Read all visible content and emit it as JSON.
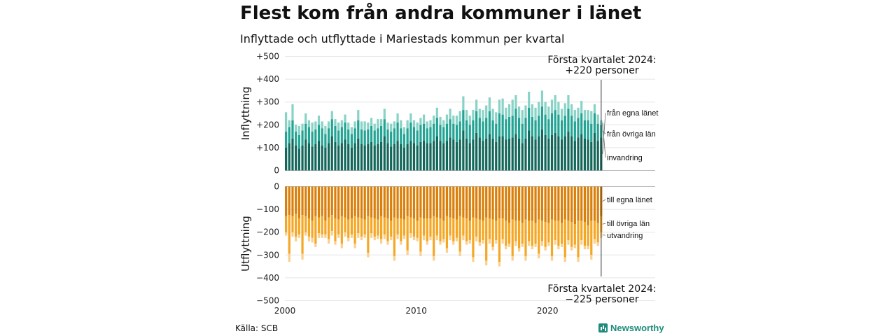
{
  "title": "Flest kom från andra kommuner i länet",
  "subtitle": "Inflyttade och utflyttade i Mariestads kommun per kvartal",
  "source": "Källa: SCB",
  "brand": "Newsworthy",
  "colors": {
    "in_egna": "#13665a",
    "in_ovriga": "#22a393",
    "in_invandring": "#88d3c6",
    "out_egna": "#d97f0a",
    "out_ovriga": "#f5a623",
    "out_utvandring": "#fad08c",
    "brand": "#1d8c7c"
  },
  "chart_data": [
    {
      "type": "bar",
      "stacked": true,
      "ylabel": "Inflyttning",
      "ylim": [
        0,
        500
      ],
      "yticks": [
        "0",
        "+100",
        "+200",
        "+300",
        "+400",
        "+500"
      ],
      "xticks": [
        "2000",
        "2010",
        "2020"
      ],
      "x_start": "2000 Q1",
      "x_end": "2024 Q1",
      "annotation": "Första kvartalet 2024:\n+220 personer",
      "series": [
        {
          "name": "från egna länet",
          "values": [
            100,
            120,
            140,
            110,
            95,
            110,
            135,
            120,
            105,
            115,
            130,
            110,
            100,
            120,
            150,
            125,
            110,
            120,
            135,
            115,
            100,
            120,
            140,
            115,
            110,
            115,
            125,
            110,
            115,
            125,
            150,
            120,
            105,
            115,
            130,
            115,
            100,
            115,
            130,
            120,
            110,
            125,
            130,
            120,
            120,
            130,
            150,
            130,
            120,
            130,
            145,
            135,
            125,
            135,
            175,
            140,
            120,
            135,
            165,
            145,
            130,
            140,
            160,
            140,
            125,
            150,
            150,
            135,
            140,
            145,
            160,
            140,
            120,
            140,
            175,
            150,
            135,
            150,
            180,
            155,
            140,
            155,
            165,
            150,
            135,
            150,
            170,
            150,
            130,
            145,
            160,
            140,
            135,
            125,
            165,
            130,
            145
          ]
        },
        {
          "name": "från övriga län",
          "values": [
            70,
            70,
            80,
            60,
            60,
            65,
            70,
            70,
            65,
            65,
            70,
            75,
            60,
            65,
            75,
            70,
            65,
            70,
            75,
            65,
            60,
            65,
            80,
            65,
            65,
            65,
            70,
            65,
            70,
            70,
            75,
            60,
            65,
            70,
            80,
            70,
            60,
            70,
            80,
            70,
            65,
            75,
            75,
            65,
            70,
            75,
            80,
            70,
            70,
            75,
            80,
            70,
            75,
            80,
            90,
            80,
            80,
            85,
            95,
            85,
            85,
            90,
            100,
            80,
            80,
            100,
            95,
            90,
            95,
            95,
            110,
            90,
            85,
            90,
            100,
            85,
            85,
            90,
            100,
            90,
            85,
            95,
            100,
            95,
            85,
            90,
            100,
            90,
            85,
            85,
            90,
            80,
            85,
            80,
            85,
            75,
            55
          ]
        },
        {
          "name": "invandring",
          "values": [
            85,
            30,
            70,
            30,
            40,
            30,
            45,
            30,
            40,
            35,
            40,
            30,
            35,
            30,
            35,
            30,
            35,
            30,
            35,
            30,
            30,
            30,
            45,
            35,
            40,
            30,
            35,
            30,
            40,
            30,
            45,
            30,
            35,
            30,
            40,
            35,
            30,
            35,
            40,
            30,
            35,
            30,
            40,
            30,
            30,
            35,
            45,
            35,
            30,
            40,
            45,
            35,
            40,
            45,
            60,
            45,
            40,
            45,
            50,
            40,
            50,
            55,
            60,
            50,
            50,
            60,
            70,
            50,
            55,
            70,
            60,
            50,
            60,
            55,
            70,
            55,
            55,
            60,
            70,
            55,
            55,
            60,
            65,
            55,
            50,
            55,
            60,
            50,
            50,
            45,
            55,
            45,
            45,
            55,
            40,
            40,
            20
          ]
        }
      ]
    },
    {
      "type": "bar",
      "stacked": true,
      "ylabel": "Utflyttning",
      "ylim": [
        -500,
        0
      ],
      "yticks": [
        "0",
        "−100",
        "−200",
        "−300",
        "−400",
        "−500"
      ],
      "xticks": [
        "2000",
        "2010",
        "2020"
      ],
      "x_start": "2000 Q1",
      "x_end": "2024 Q1",
      "annotation": "Första kvartalet 2024:\n−225 personer",
      "series": [
        {
          "name": "till egna länet",
          "values": [
            -130,
            -125,
            -130,
            -120,
            -140,
            -125,
            -130,
            -140,
            -150,
            -130,
            -135,
            -130,
            -150,
            -135,
            -125,
            -140,
            -145,
            -130,
            -135,
            -145,
            -140,
            -130,
            -135,
            -140,
            -145,
            -130,
            -135,
            -140,
            -145,
            -130,
            -135,
            -140,
            -150,
            -135,
            -140,
            -140,
            -145,
            -130,
            -135,
            -140,
            -150,
            -135,
            -140,
            -140,
            -140,
            -130,
            -135,
            -140,
            -150,
            -130,
            -135,
            -140,
            -145,
            -130,
            -135,
            -140,
            -150,
            -135,
            -140,
            -145,
            -150,
            -135,
            -140,
            -145,
            -150,
            -140,
            -140,
            -150,
            -160,
            -145,
            -150,
            -150,
            -160,
            -145,
            -150,
            -150,
            -160,
            -145,
            -150,
            -155,
            -160,
            -145,
            -150,
            -150,
            -160,
            -145,
            -150,
            -155,
            -165,
            -150,
            -150,
            -155,
            -170,
            -150,
            -150,
            -160,
            -130
          ]
        },
        {
          "name": "till övriga län",
          "values": [
            -70,
            -170,
            -70,
            -100,
            -70,
            -170,
            -70,
            -80,
            -75,
            -120,
            -70,
            -80,
            -60,
            -95,
            -70,
            -100,
            -65,
            -120,
            -65,
            -80,
            -70,
            -120,
            -70,
            -80,
            -65,
            -160,
            -70,
            -80,
            -70,
            -100,
            -75,
            -100,
            -70,
            -170,
            -70,
            -100,
            -70,
            -150,
            -70,
            -80,
            -75,
            -150,
            -75,
            -100,
            -80,
            -175,
            -80,
            -100,
            -80,
            -140,
            -80,
            -100,
            -80,
            -155,
            -80,
            -100,
            -85,
            -175,
            -80,
            -100,
            -85,
            -190,
            -90,
            -120,
            -85,
            -190,
            -90,
            -110,
            -90,
            -160,
            -90,
            -120,
            -90,
            -160,
            -90,
            -110,
            -90,
            -150,
            -90,
            -110,
            -85,
            -160,
            -85,
            -110,
            -90,
            -165,
            -85,
            -110,
            -90,
            -160,
            -85,
            -105,
            -90,
            -150,
            -80,
            -85,
            -70
          ]
        },
        {
          "name": "utvandring",
          "values": [
            -15,
            -35,
            -20,
            -20,
            -15,
            -25,
            -15,
            -20,
            -20,
            -15,
            -20,
            -15,
            -15,
            -20,
            -20,
            -15,
            -15,
            -20,
            -20,
            -15,
            -15,
            -20,
            -20,
            -15,
            -15,
            -20,
            -20,
            -15,
            -15,
            -20,
            -20,
            -15,
            -15,
            -20,
            -20,
            -15,
            -15,
            -20,
            -20,
            -15,
            -15,
            -20,
            -20,
            -15,
            -15,
            -20,
            -20,
            -15,
            -15,
            -20,
            -20,
            -15,
            -15,
            -20,
            -20,
            -15,
            -15,
            -20,
            -20,
            -15,
            -15,
            -20,
            -20,
            -15,
            -15,
            -20,
            -20,
            -15,
            -15,
            -20,
            -20,
            -15,
            -15,
            -20,
            -20,
            -15,
            -15,
            -20,
            -20,
            -15,
            -15,
            -20,
            -20,
            -15,
            -15,
            -20,
            -20,
            -15,
            -15,
            -20,
            -20,
            -15,
            -15,
            -20,
            -20,
            -15,
            -25
          ]
        }
      ]
    }
  ]
}
